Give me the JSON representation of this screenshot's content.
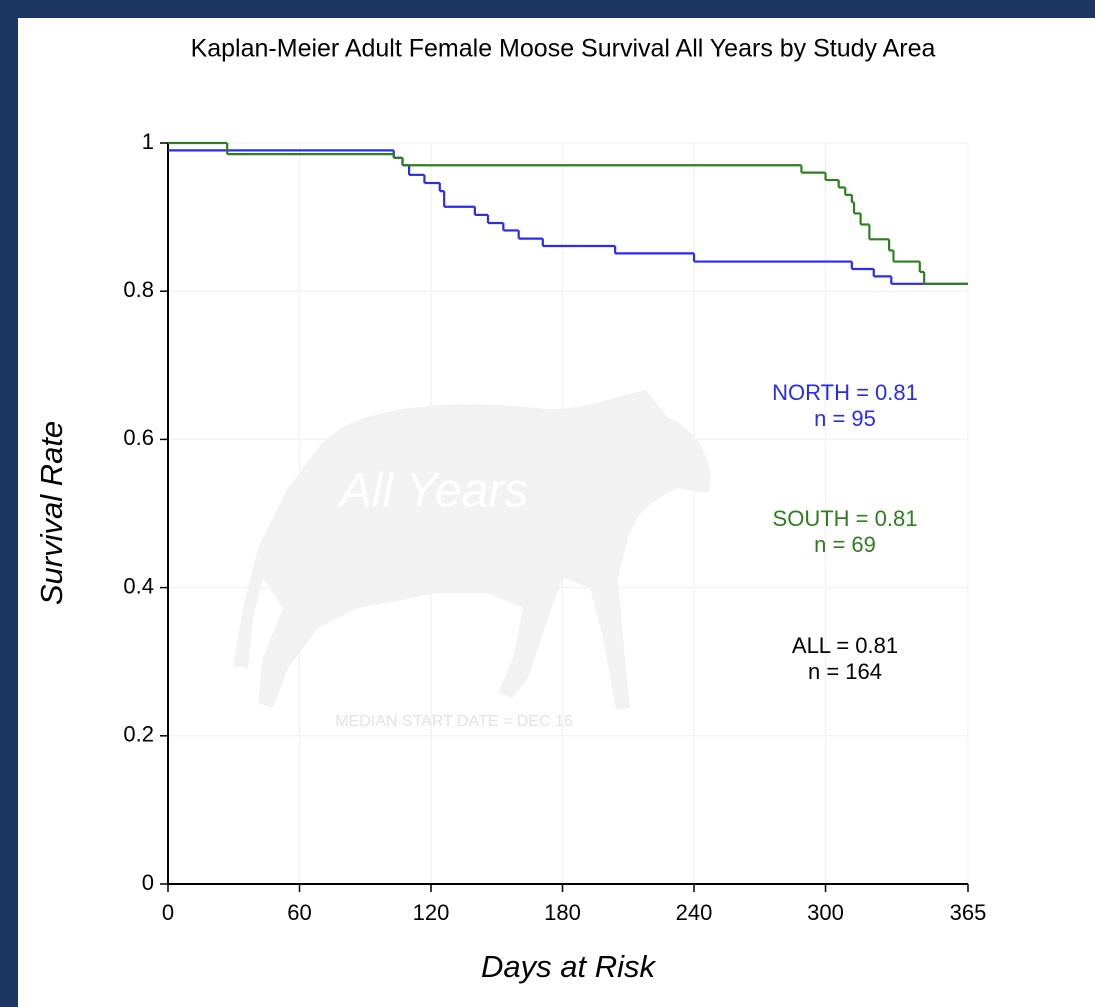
{
  "chart_data": {
    "type": "step",
    "title": "Kaplan-Meier Adult Female Moose Survival All Years by Study Area",
    "x_label": "Days at Risk",
    "y_label": "Survival Rate",
    "watermark": "All Years",
    "footnote": "MEDIAN START DATE = DEC 16",
    "xlim": [
      0,
      365
    ],
    "xticks": [
      0,
      60,
      120,
      180,
      240,
      300,
      365
    ],
    "ylim": [
      0,
      1
    ],
    "yticks": [
      0,
      0.2,
      0.4,
      0.6,
      0.8,
      1
    ],
    "grid": true,
    "series": [
      {
        "name": "NORTH",
        "color": "#2a2af0",
        "x": [
          0,
          103,
          107,
          110,
          117,
          124,
          126,
          140,
          146,
          153,
          160,
          171,
          204,
          240,
          312,
          322,
          330
        ],
        "values": [
          0.99,
          0.98,
          0.97,
          0.957,
          0.946,
          0.935,
          0.914,
          0.903,
          0.892,
          0.882,
          0.871,
          0.861,
          0.851,
          0.84,
          0.83,
          0.82,
          0.81
        ]
      },
      {
        "name": "SOUTH",
        "color": "#2e7d1f",
        "x": [
          0,
          27,
          103,
          107,
          289,
          300,
          306,
          309,
          312,
          313,
          316,
          320,
          329,
          331,
          343,
          345
        ],
        "values": [
          1,
          0.985,
          0.98,
          0.97,
          0.96,
          0.95,
          0.94,
          0.93,
          0.92,
          0.905,
          0.89,
          0.87,
          0.855,
          0.84,
          0.826,
          0.81
        ]
      }
    ],
    "annotations": [
      {
        "text": "NORTH = 0.81",
        "color": "#2a2af0"
      },
      {
        "text": "n = 95",
        "color": "#2a2af0"
      },
      {
        "text": "SOUTH = 0.81",
        "color": "#2e7d1f"
      },
      {
        "text": "n = 69",
        "color": "#2e7d1f"
      },
      {
        "text": "ALL = 0.81",
        "color": "#000000"
      },
      {
        "text": "n = 164",
        "color": "#000000"
      }
    ]
  }
}
